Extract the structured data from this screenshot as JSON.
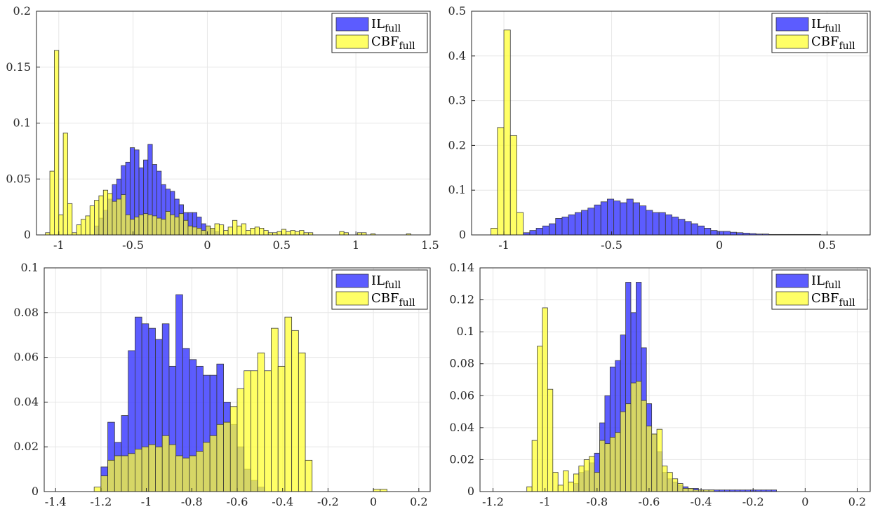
{
  "legend_labels": [
    {
      "base": "IL",
      "sub": "full"
    },
    {
      "base": "CBF",
      "sub": "full"
    }
  ],
  "colors": {
    "il": "#4040ff",
    "cbf": "#ffff33",
    "edge": "#3a3a3a",
    "grid": "#e6e6e6",
    "axis": "#262626"
  },
  "chart_data": [
    {
      "type": "bar",
      "xlim": [
        -1.15,
        1.5
      ],
      "ylim": [
        0,
        0.2
      ],
      "xticks": [
        -1,
        -0.5,
        0,
        0.5,
        1,
        1.5
      ],
      "xtick_labels": [
        "-1",
        "-0.5",
        "0",
        "0.5",
        "1",
        "1.5"
      ],
      "yticks": [
        0,
        0.05,
        0.1,
        0.15,
        0.2
      ],
      "ytick_labels": [
        "0",
        "0.05",
        "0.1",
        "0.15",
        "0.2"
      ],
      "grid": true,
      "legend_position": "top-right",
      "series": [
        {
          "name": "IL_full",
          "start": -0.76,
          "width": 0.03,
          "values": [
            0.008,
            0.015,
            0.022,
            0.032,
            0.045,
            0.05,
            0.062,
            0.065,
            0.078,
            0.076,
            0.06,
            0.067,
            0.081,
            0.063,
            0.057,
            0.045,
            0.041,
            0.039,
            0.032,
            0.027,
            0.02,
            0.02,
            0.02,
            0.016,
            0.01,
            0.008,
            0.005,
            0.003
          ]
        },
        {
          "name": "CBF_full",
          "start": -1.09,
          "width": 0.03,
          "values": [
            0.002,
            0.057,
            0.165,
            0.018,
            0.091,
            0.028,
            0.002,
            0.009,
            0.014,
            0.017,
            0.026,
            0.031,
            0.035,
            0.04,
            0.037,
            0.03,
            0.032,
            0.036,
            0.018,
            0.014,
            0.016,
            0.018,
            0.019,
            0.018,
            0.017,
            0.015,
            0.014,
            0.021,
            0.018,
            0.016,
            0.019,
            0.013,
            0.008,
            0.007,
            0.006,
            0.004,
            0.008,
            0.006,
            0.01,
            0.009,
            0.004,
            0.007,
            0.013,
            0.008,
            0.01,
            0.004,
            0.006,
            0.007,
            0.006,
            0.004,
            0.002,
            0.002,
            0.003,
            0.005,
            0.003,
            0.004,
            0.003,
            0.004,
            0.002,
            0.002,
            0.0,
            0.0,
            0.0,
            0.0,
            0.0,
            0.0,
            0.003,
            0.002,
            0.0,
            0.0,
            0.002,
            0.002,
            0.0,
            0.001,
            0.0,
            0.0,
            0.0,
            0.0,
            0.0,
            0.0,
            0.0,
            0.001
          ]
        }
      ]
    },
    {
      "type": "bar",
      "xlim": [
        -1.15,
        0.7
      ],
      "ylim": [
        0,
        0.5
      ],
      "xticks": [
        -1,
        -0.5,
        0,
        0.5
      ],
      "xtick_labels": [
        "-1",
        "-0.5",
        "0",
        "0.5"
      ],
      "yticks": [
        0,
        0.1,
        0.2,
        0.3,
        0.4,
        0.5
      ],
      "ytick_labels": [
        "0",
        "0.1",
        "0.2",
        "0.3",
        "0.4",
        "0.5"
      ],
      "grid": true,
      "legend_position": "top-right",
      "series": [
        {
          "name": "IL_full",
          "start": -0.91,
          "width": 0.03,
          "values": [
            0.005,
            0.01,
            0.015,
            0.02,
            0.025,
            0.037,
            0.04,
            0.045,
            0.05,
            0.055,
            0.06,
            0.067,
            0.074,
            0.08,
            0.076,
            0.072,
            0.08,
            0.072,
            0.065,
            0.055,
            0.05,
            0.05,
            0.045,
            0.04,
            0.035,
            0.03,
            0.025,
            0.02,
            0.015,
            0.01,
            0.008,
            0.008,
            0.006,
            0.005,
            0.004,
            0.003,
            0.002,
            0.002,
            0.001,
            0.001,
            0.001,
            0.001,
            0.001,
            0.001,
            0.001,
            0.001
          ]
        },
        {
          "name": "CBF_full",
          "start": -1.06,
          "width": 0.03,
          "values": [
            0.015,
            0.24,
            0.458,
            0.222,
            0.05
          ]
        }
      ]
    },
    {
      "type": "bar",
      "xlim": [
        -1.45,
        0.25
      ],
      "ylim": [
        0,
        0.1
      ],
      "xticks": [
        -1.4,
        -1.2,
        -1,
        -0.8,
        -0.6,
        -0.4,
        -0.2,
        0,
        0.2
      ],
      "xtick_labels": [
        "-1.4",
        "-1.2",
        "-1",
        "-0.8",
        "-0.6",
        "-0.4",
        "-0.2",
        "0",
        "0.2"
      ],
      "yticks": [
        0,
        0.02,
        0.04,
        0.06,
        0.08,
        0.1
      ],
      "ytick_labels": [
        "0",
        "0.02",
        "0.04",
        "0.06",
        "0.08",
        "0.1"
      ],
      "grid": true,
      "legend_position": "top-right",
      "series": [
        {
          "name": "IL_full",
          "start": -1.2,
          "width": 0.03,
          "values": [
            0.011,
            0.031,
            0.022,
            0.034,
            0.063,
            0.078,
            0.075,
            0.073,
            0.068,
            0.075,
            0.056,
            0.088,
            0.064,
            0.059,
            0.056,
            0.052,
            0.052,
            0.057,
            0.04,
            0.03,
            0.02,
            0.01,
            0.005,
            0.002
          ]
        },
        {
          "name": "CBF_full",
          "start": -1.23,
          "width": 0.03,
          "values": [
            0.002,
            0.007,
            0.014,
            0.016,
            0.016,
            0.017,
            0.019,
            0.02,
            0.021,
            0.02,
            0.025,
            0.021,
            0.016,
            0.015,
            0.016,
            0.018,
            0.022,
            0.025,
            0.03,
            0.031,
            0.038,
            0.046,
            0.054,
            0.054,
            0.062,
            0.054,
            0.073,
            0.056,
            0.078,
            0.072,
            0.062,
            0.014,
            0.0,
            0.0,
            0.0,
            0.0,
            0.0,
            0.0,
            0.0,
            0.0,
            0.0,
            0.001,
            0.001
          ]
        }
      ]
    },
    {
      "type": "bar",
      "xlim": [
        -1.25,
        0.25
      ],
      "ylim": [
        0,
        0.14
      ],
      "xticks": [
        -1.2,
        -1,
        -0.8,
        -0.6,
        -0.4,
        -0.2,
        0,
        0.2
      ],
      "xtick_labels": [
        "-1.2",
        "-1",
        "-0.8",
        "-0.6",
        "-0.4",
        "-0.2",
        "0",
        "0.2"
      ],
      "yticks": [
        0,
        0.02,
        0.04,
        0.06,
        0.08,
        0.1,
        0.12,
        0.14
      ],
      "ytick_labels": [
        "0",
        "0.02",
        "0.04",
        "0.06",
        "0.08",
        "0.1",
        "0.12",
        "0.14"
      ],
      "grid": true,
      "legend_position": "top-right",
      "series": [
        {
          "name": "IL_full",
          "start": -0.89,
          "width": 0.02,
          "values": [
            0.005,
            0.012,
            0.013,
            0.018,
            0.024,
            0.043,
            0.06,
            0.078,
            0.082,
            0.098,
            0.131,
            0.112,
            0.131,
            0.09,
            0.055,
            0.036,
            0.025,
            0.012,
            0.008,
            0.006,
            0.004,
            0.003,
            0.002,
            0.002,
            0.001,
            0.001,
            0.001,
            0.001,
            0.001,
            0.001,
            0.001,
            0.001,
            0.001,
            0.001,
            0.001,
            0.001,
            0.001,
            0.001,
            0.001
          ]
        },
        {
          "name": "CBF_full",
          "start": -1.07,
          "width": 0.02,
          "values": [
            0.003,
            0.032,
            0.091,
            0.115,
            0.064,
            0.012,
            0.004,
            0.013,
            0.006,
            0.011,
            0.016,
            0.02,
            0.022,
            0.012,
            0.032,
            0.03,
            0.034,
            0.037,
            0.05,
            0.055,
            0.068,
            0.069,
            0.057,
            0.041,
            0.036,
            0.039,
            0.016,
            0.012,
            0.008,
            0.005,
            0.002,
            0.002,
            0.001,
            0.001,
            0.001,
            0.001,
            0.0,
            0.0,
            0.0,
            0.0,
            0.0,
            0.0
          ]
        }
      ]
    }
  ]
}
